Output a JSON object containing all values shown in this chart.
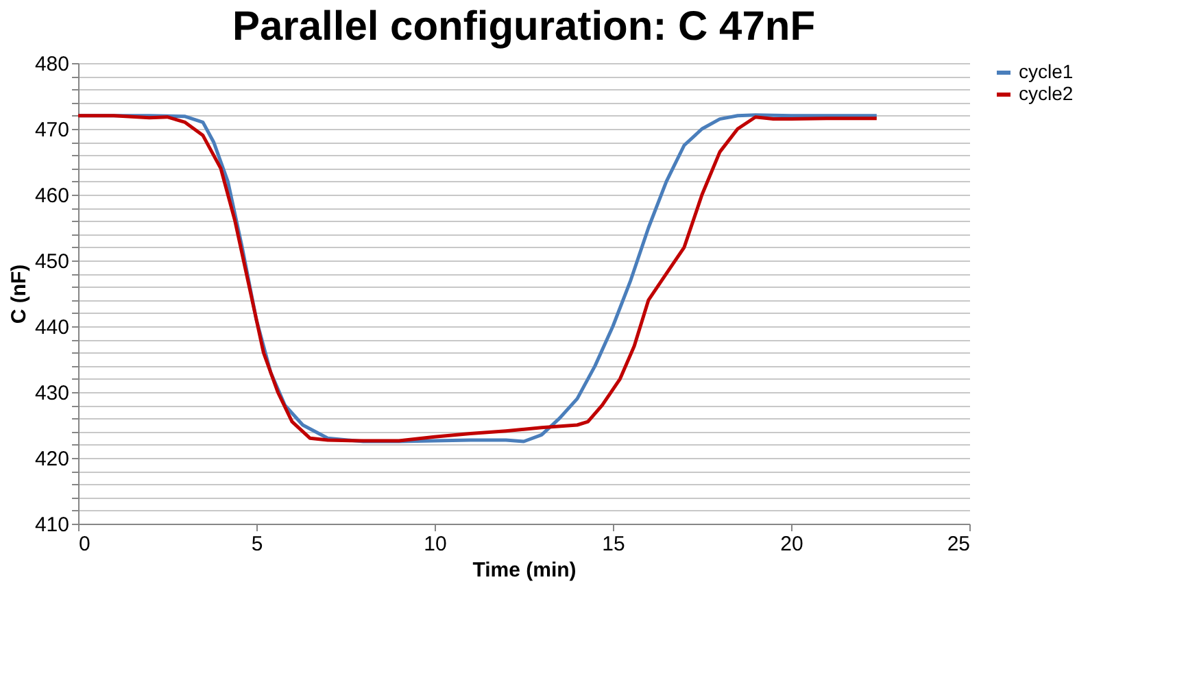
{
  "chart_data": {
    "type": "line",
    "title": "Parallel configuration: C 47nF",
    "xlabel": "Time (min)",
    "ylabel": "C (nF)",
    "xlim": [
      0,
      25
    ],
    "xticks": [
      0,
      5,
      10,
      15,
      20,
      25
    ],
    "ylim": [
      410,
      480
    ],
    "yticks": [
      410,
      {
        "value": 412,
        "label": null
      },
      {
        "value": 414,
        "label": null
      },
      {
        "value": 416,
        "label": null
      },
      {
        "value": 418,
        "label": null
      },
      420,
      {
        "value": 422,
        "label": null
      },
      {
        "value": 424,
        "label": null
      },
      {
        "value": 426,
        "label": null
      },
      {
        "value": 428,
        "label": null
      },
      430,
      {
        "value": 432,
        "label": null
      },
      {
        "value": 434,
        "label": null
      },
      {
        "value": 436,
        "label": null
      },
      {
        "value": 438,
        "label": null
      },
      440,
      {
        "value": 442,
        "label": null
      },
      {
        "value": 444,
        "label": null
      },
      {
        "value": 446,
        "label": null
      },
      {
        "value": 448,
        "label": null
      },
      450,
      {
        "value": 452,
        "label": null
      },
      {
        "value": 454,
        "label": null
      },
      {
        "value": 456,
        "label": null
      },
      {
        "value": 458,
        "label": null
      },
      460,
      {
        "value": 462,
        "label": null
      },
      {
        "value": 464,
        "label": null
      },
      {
        "value": 466,
        "label": null
      },
      {
        "value": 468,
        "label": null
      },
      470,
      {
        "value": 472,
        "label": null
      },
      {
        "value": 474,
        "label": null
      },
      {
        "value": 476,
        "label": null
      },
      {
        "value": 478,
        "label": null
      },
      480
    ],
    "grid": "y",
    "legend": "right",
    "marker": "none",
    "line_style": "solid",
    "series": [
      {
        "name": "cycle1",
        "color": "#4a7ebb",
        "x": [
          0,
          1,
          2,
          3,
          3.5,
          3.8,
          4.2,
          4.6,
          5,
          5.4,
          5.8,
          6.3,
          7,
          8,
          9,
          10,
          11,
          12,
          12.5,
          13,
          13.5,
          14,
          14.5,
          15,
          15.5,
          16,
          16.5,
          17,
          17.5,
          18,
          18.5,
          19,
          20,
          21,
          22.4
        ],
        "values": [
          472,
          472,
          472,
          471.9,
          471,
          468,
          462,
          452,
          441,
          433,
          428,
          425,
          423,
          422.5,
          422.5,
          422.6,
          422.7,
          422.7,
          422.5,
          423.5,
          426,
          429,
          434,
          440,
          447,
          455,
          462,
          467.5,
          470,
          471.5,
          472,
          472.1,
          472,
          472,
          472
        ]
      },
      {
        "name": "cycle2",
        "color": "#c00000",
        "x": [
          0,
          1,
          2,
          2.5,
          3,
          3.5,
          4,
          4.4,
          4.8,
          5.2,
          5.6,
          6,
          6.5,
          7,
          8,
          9,
          10,
          11,
          12,
          13,
          14,
          14.3,
          14.7,
          15.2,
          15.6,
          16,
          16.5,
          17,
          17.5,
          18,
          18.5,
          19,
          19.5,
          20,
          21,
          22.4
        ],
        "values": [
          472,
          472,
          471.7,
          471.8,
          471,
          469,
          464,
          456,
          446,
          436,
          430,
          425.5,
          423,
          422.7,
          422.6,
          422.6,
          423.2,
          423.7,
          424.1,
          424.6,
          425,
          425.5,
          428,
          432,
          437,
          444,
          448,
          452,
          460,
          466.5,
          470,
          471.8,
          471.5,
          471.5,
          471.6,
          471.6
        ]
      }
    ]
  }
}
